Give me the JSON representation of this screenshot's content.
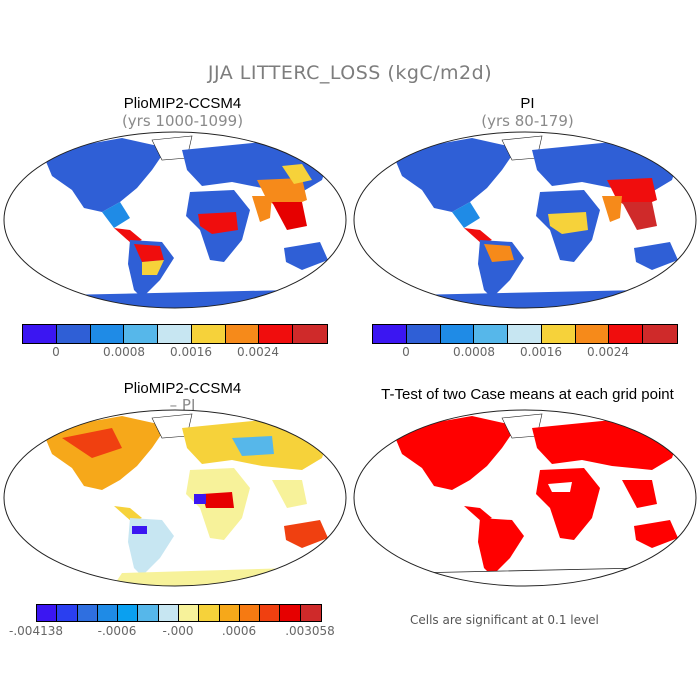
{
  "title": "JJA LITTERC_LOSS (kgC/m2d)",
  "panels": {
    "tl": {
      "title": "PlioMIP2-CCSM4",
      "subtitle": "(yrs 1000-1099)"
    },
    "tr": {
      "title": "PI",
      "subtitle": "(yrs 80-179)"
    },
    "bl": {
      "title": "PlioMIP2-CCSM4",
      "subtitle": "– PI"
    },
    "br": {
      "title": "T-Test of two Case means at each grid point",
      "note": "Cells are significant at 0.1 level"
    }
  },
  "colorbar_top": {
    "colors": [
      "#3b16f2",
      "#2f5fd6",
      "#1f8be6",
      "#56b7ea",
      "#c7e6f2",
      "#f6d23a",
      "#f68a1a",
      "#f00d0d",
      "#cf2a2a"
    ],
    "labels": [
      "0",
      "0.0008",
      "0.0016",
      "0.0024"
    ]
  },
  "colorbar_bottom": {
    "colors": [
      "#3b16f2",
      "#2a3ff0",
      "#2f6fe0",
      "#1f8be6",
      "#0aa0f0",
      "#56b7ea",
      "#c7e6f2",
      "#f7f29a",
      "#f6d23a",
      "#f6a81a",
      "#f67a12",
      "#f04010",
      "#e60000",
      "#cf2a2a"
    ],
    "labels": [
      "-.004138",
      "-.0006",
      "-.000",
      ".0006",
      ".003058"
    ]
  },
  "map_colors": {
    "ocean": "#ffffff",
    "outline": "#222222",
    "land_blue": "#2f5fd6",
    "land_pale": "#f7f29a",
    "sig_red": "#ff0000",
    "hot_red": "#e60000"
  }
}
